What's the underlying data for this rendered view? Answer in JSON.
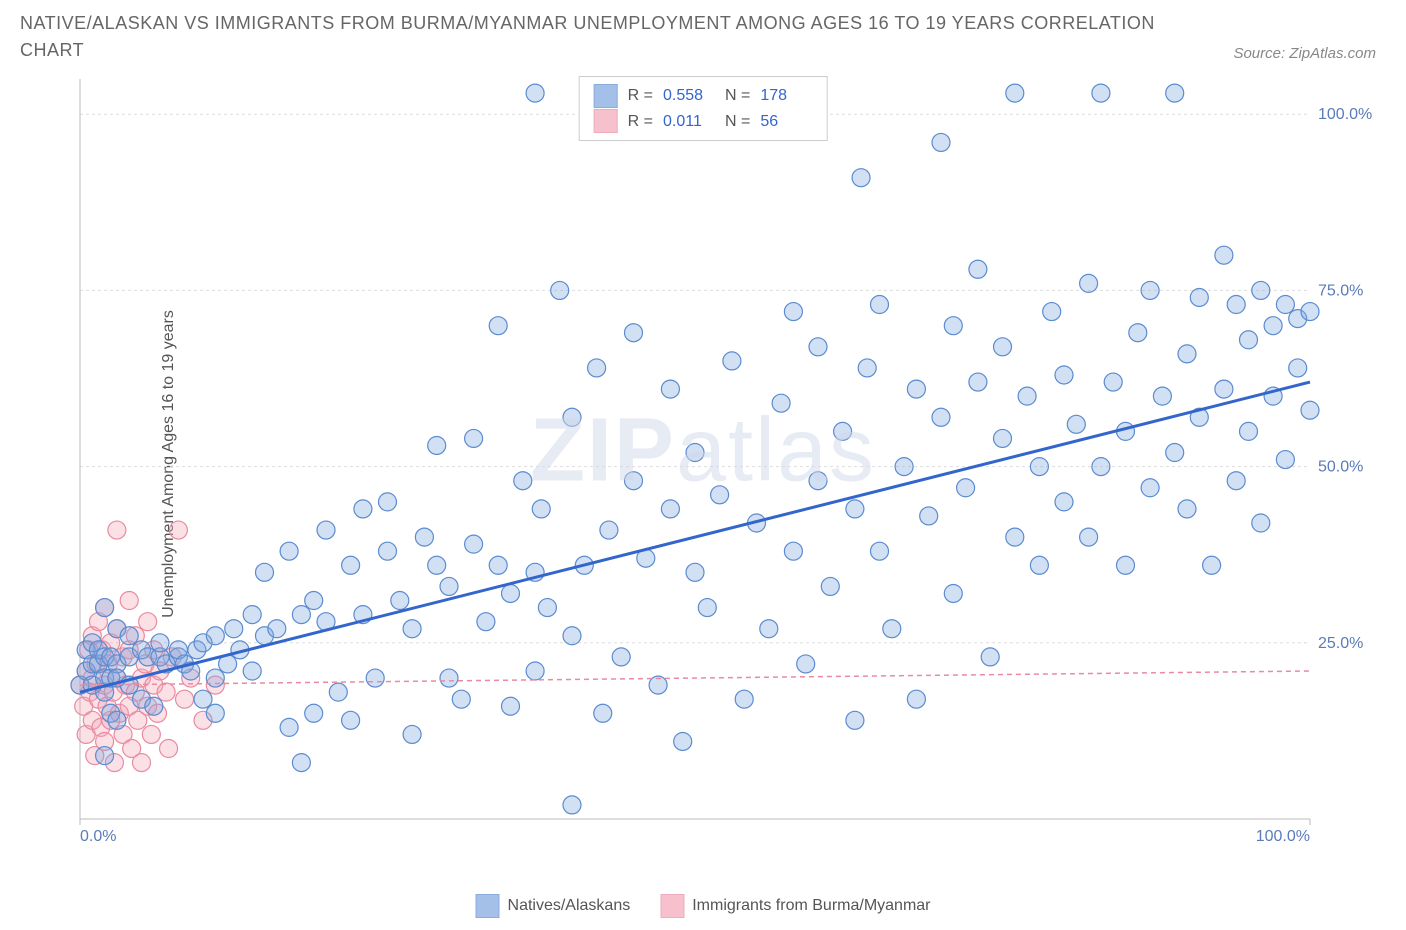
{
  "title": "NATIVE/ALASKAN VS IMMIGRANTS FROM BURMA/MYANMAR UNEMPLOYMENT AMONG AGES 16 TO 19 YEARS CORRELATION CHART",
  "source": "Source: ZipAtlas.com",
  "ylabel": "Unemployment Among Ages 16 to 19 years",
  "watermark_a": "ZIP",
  "watermark_b": "atlas",
  "chart": {
    "type": "scatter",
    "xlim": [
      0,
      100
    ],
    "ylim": [
      0,
      105
    ],
    "x_ticks": [
      0,
      100
    ],
    "x_tick_labels": [
      "0.0%",
      "100.0%"
    ],
    "y_ticks": [
      25,
      50,
      75,
      100
    ],
    "y_tick_labels": [
      "25.0%",
      "50.0%",
      "75.0%",
      "100.0%"
    ],
    "tick_color": "#5b7bb8",
    "tick_fontsize": 16,
    "grid_color": "#dddddd",
    "axis_color": "#bbbbbb",
    "background_color": "#ffffff",
    "marker_radius": 9,
    "marker_stroke_width": 1.2,
    "marker_fill_opacity": 0.35,
    "series_blue": {
      "name": "Natives/Alaskans",
      "fill": "#7ea6e0",
      "stroke": "#5b8bd0",
      "R": "0.558",
      "N": "178",
      "trend": {
        "x1": 0,
        "y1": 18,
        "x2": 100,
        "y2": 62,
        "color": "#3366cc",
        "width": 3,
        "dash": ""
      },
      "points": [
        [
          0,
          19
        ],
        [
          0.5,
          21
        ],
        [
          0.5,
          24
        ],
        [
          1,
          19
        ],
        [
          1,
          22
        ],
        [
          1,
          25
        ],
        [
          1.5,
          22
        ],
        [
          1.5,
          24
        ],
        [
          2,
          9
        ],
        [
          2,
          18
        ],
        [
          2,
          20
        ],
        [
          2,
          23
        ],
        [
          2,
          30
        ],
        [
          2.5,
          15
        ],
        [
          2.5,
          20
        ],
        [
          2.5,
          23
        ],
        [
          3,
          14
        ],
        [
          3,
          22
        ],
        [
          3,
          20
        ],
        [
          3,
          27
        ],
        [
          4,
          19
        ],
        [
          4,
          23
        ],
        [
          4,
          26
        ],
        [
          5,
          17
        ],
        [
          5,
          24
        ],
        [
          5.5,
          23
        ],
        [
          6,
          16
        ],
        [
          6.5,
          23
        ],
        [
          6.5,
          25
        ],
        [
          7,
          22
        ],
        [
          8,
          23
        ],
        [
          8,
          24
        ],
        [
          8.5,
          22
        ],
        [
          9,
          21
        ],
        [
          9.5,
          24
        ],
        [
          10,
          17
        ],
        [
          10,
          25
        ],
        [
          11,
          15
        ],
        [
          11,
          20
        ],
        [
          11,
          26
        ],
        [
          12,
          22
        ],
        [
          12.5,
          27
        ],
        [
          13,
          24
        ],
        [
          14,
          21
        ],
        [
          14,
          29
        ],
        [
          15,
          26
        ],
        [
          15,
          35
        ],
        [
          16,
          27
        ],
        [
          17,
          13
        ],
        [
          17,
          38
        ],
        [
          18,
          8
        ],
        [
          18,
          29
        ],
        [
          19,
          15
        ],
        [
          19,
          31
        ],
        [
          20,
          28
        ],
        [
          20,
          41
        ],
        [
          21,
          18
        ],
        [
          22,
          14
        ],
        [
          22,
          36
        ],
        [
          23,
          29
        ],
        [
          23,
          44
        ],
        [
          24,
          20
        ],
        [
          25,
          38
        ],
        [
          25,
          45
        ],
        [
          26,
          31
        ],
        [
          27,
          12
        ],
        [
          27,
          27
        ],
        [
          28,
          40
        ],
        [
          29,
          36
        ],
        [
          29,
          53
        ],
        [
          30,
          20
        ],
        [
          30,
          33
        ],
        [
          31,
          17
        ],
        [
          32,
          39
        ],
        [
          32,
          54
        ],
        [
          33,
          28
        ],
        [
          34,
          36
        ],
        [
          34,
          70
        ],
        [
          35,
          16
        ],
        [
          35,
          32
        ],
        [
          36,
          48
        ],
        [
          37,
          21
        ],
        [
          37,
          35
        ],
        [
          37,
          103
        ],
        [
          37.5,
          44
        ],
        [
          38,
          30
        ],
        [
          39,
          75
        ],
        [
          40,
          2
        ],
        [
          40,
          26
        ],
        [
          40,
          57
        ],
        [
          41,
          36
        ],
        [
          42,
          64
        ],
        [
          42.5,
          15
        ],
        [
          43,
          41
        ],
        [
          43.5,
          103
        ],
        [
          44,
          23
        ],
        [
          45,
          48
        ],
        [
          45,
          69
        ],
        [
          46,
          37
        ],
        [
          47,
          19
        ],
        [
          48,
          44
        ],
        [
          48,
          61
        ],
        [
          48,
          103
        ],
        [
          49,
          11
        ],
        [
          50,
          35
        ],
        [
          50,
          52
        ],
        [
          51,
          30
        ],
        [
          52,
          46
        ],
        [
          53,
          65
        ],
        [
          54,
          17
        ],
        [
          54,
          103
        ],
        [
          55,
          42
        ],
        [
          56,
          27
        ],
        [
          57,
          59
        ],
        [
          58,
          38
        ],
        [
          58,
          72
        ],
        [
          59,
          22
        ],
        [
          60,
          48
        ],
        [
          60,
          67
        ],
        [
          61,
          33
        ],
        [
          62,
          55
        ],
        [
          63,
          14
        ],
        [
          63,
          44
        ],
        [
          63.5,
          91
        ],
        [
          64,
          64
        ],
        [
          65,
          38
        ],
        [
          65,
          73
        ],
        [
          66,
          27
        ],
        [
          67,
          50
        ],
        [
          68,
          61
        ],
        [
          68,
          17
        ],
        [
          69,
          43
        ],
        [
          70,
          57
        ],
        [
          70,
          96
        ],
        [
          71,
          32
        ],
        [
          71,
          70
        ],
        [
          72,
          47
        ],
        [
          73,
          62
        ],
        [
          73,
          78
        ],
        [
          74,
          23
        ],
        [
          75,
          54
        ],
        [
          75,
          67
        ],
        [
          76,
          40
        ],
        [
          76,
          103
        ],
        [
          77,
          60
        ],
        [
          78,
          36
        ],
        [
          78,
          50
        ],
        [
          79,
          72
        ],
        [
          80,
          45
        ],
        [
          80,
          63
        ],
        [
          81,
          56
        ],
        [
          82,
          40
        ],
        [
          82,
          76
        ],
        [
          83,
          50
        ],
        [
          83,
          103
        ],
        [
          84,
          62
        ],
        [
          85,
          36
        ],
        [
          85,
          55
        ],
        [
          86,
          69
        ],
        [
          87,
          47
        ],
        [
          87,
          75
        ],
        [
          88,
          60
        ],
        [
          89,
          52
        ],
        [
          89,
          103
        ],
        [
          90,
          44
        ],
        [
          90,
          66
        ],
        [
          91,
          57
        ],
        [
          91,
          74
        ],
        [
          92,
          36
        ],
        [
          93,
          61
        ],
        [
          93,
          80
        ],
        [
          94,
          48
        ],
        [
          94,
          73
        ],
        [
          95,
          55
        ],
        [
          95,
          68
        ],
        [
          96,
          42
        ],
        [
          96,
          75
        ],
        [
          97,
          60
        ],
        [
          97,
          70
        ],
        [
          98,
          51
        ],
        [
          98,
          73
        ],
        [
          99,
          64
        ],
        [
          99,
          71
        ],
        [
          100,
          58
        ],
        [
          100,
          72
        ]
      ]
    },
    "series_pink": {
      "name": "Immigrants from Burma/Myanmar",
      "fill": "#f4a6b8",
      "stroke": "#e88ba0",
      "R": "0.011",
      "N": "56",
      "trend": {
        "x1": 0,
        "y1": 19,
        "x2": 100,
        "y2": 21,
        "color": "#e88ba0",
        "width": 1.5,
        "dash": "5,4"
      },
      "points": [
        [
          0,
          19
        ],
        [
          0.3,
          16
        ],
        [
          0.5,
          21
        ],
        [
          0.5,
          12
        ],
        [
          0.7,
          24
        ],
        [
          0.8,
          18
        ],
        [
          1,
          14
        ],
        [
          1,
          20
        ],
        [
          1,
          26
        ],
        [
          1.2,
          9
        ],
        [
          1.3,
          22
        ],
        [
          1.5,
          17
        ],
        [
          1.5,
          28
        ],
        [
          1.7,
          13
        ],
        [
          1.8,
          24
        ],
        [
          2,
          19
        ],
        [
          2,
          11
        ],
        [
          2,
          30
        ],
        [
          2.2,
          16
        ],
        [
          2.3,
          22
        ],
        [
          2.5,
          14
        ],
        [
          2.5,
          25
        ],
        [
          2.7,
          18
        ],
        [
          2.8,
          8
        ],
        [
          3,
          20
        ],
        [
          3,
          27
        ],
        [
          3,
          41
        ],
        [
          3.2,
          15
        ],
        [
          3.5,
          23
        ],
        [
          3.5,
          12
        ],
        [
          3.7,
          19
        ],
        [
          4,
          16
        ],
        [
          4,
          24
        ],
        [
          4,
          31
        ],
        [
          4.2,
          10
        ],
        [
          4.5,
          18
        ],
        [
          4.5,
          26
        ],
        [
          4.7,
          14
        ],
        [
          5,
          20
        ],
        [
          5,
          8
        ],
        [
          5.3,
          22
        ],
        [
          5.5,
          16
        ],
        [
          5.5,
          28
        ],
        [
          5.8,
          12
        ],
        [
          6,
          19
        ],
        [
          6,
          24
        ],
        [
          6.3,
          15
        ],
        [
          6.5,
          21
        ],
        [
          7,
          18
        ],
        [
          7.2,
          10
        ],
        [
          7.5,
          23
        ],
        [
          8,
          41
        ],
        [
          8.5,
          17
        ],
        [
          9,
          20
        ],
        [
          10,
          14
        ],
        [
          11,
          19
        ]
      ]
    }
  },
  "stats_legend": {
    "label_R": "R =",
    "label_N": "N ="
  },
  "bottom_legend": {
    "blue": "Natives/Alaskans",
    "pink": "Immigrants from Burma/Myanmar"
  }
}
